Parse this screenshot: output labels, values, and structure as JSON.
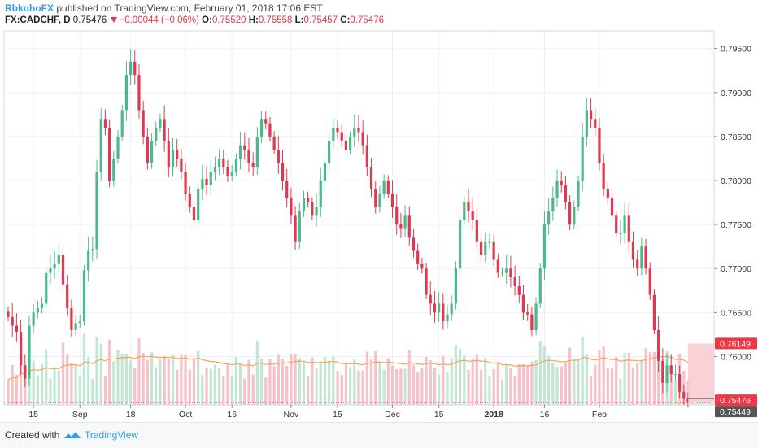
{
  "header": {
    "author": "RbkohoFX",
    "published_text": "published on TradingView.com, February 01, 2018 17:06 EST",
    "symbol": "FX:CADCHF, D",
    "last": "0.75476",
    "change": "−0.00044 (−0.06%)",
    "o_label": "O:",
    "o_value": "0.75520",
    "h_label": "H:",
    "h_value": "0.75558",
    "l_label": "L:",
    "l_value": "0.75457",
    "c_label": "C:",
    "c_value": "0.75476"
  },
  "footer": {
    "created_with": "Created with",
    "brand": "TradingView"
  },
  "colors": {
    "up": "#4cb98b",
    "down": "#e0384f",
    "vol_up": "#c3e6d4",
    "vol_down": "#f6c1c7",
    "ma": "#f4a460",
    "grid": "#eef0f3"
  },
  "chart_data": {
    "type": "candlestick",
    "ylim": [
      0.7545,
      0.797
    ],
    "y_ticks": [
      "0.79500",
      "0.79000",
      "0.78500",
      "0.78000",
      "0.77500",
      "0.77000",
      "0.76500",
      "0.76000"
    ],
    "x_ticks": [
      "15",
      "Sep",
      "18",
      "Oct",
      "16",
      "Nov",
      "15",
      "Dec",
      "15",
      "2018",
      "16",
      "Feb"
    ],
    "price_labels": [
      {
        "value": 0.76149,
        "text": "0.76149",
        "color": "#f23645"
      },
      {
        "value": 0.75476,
        "text": "0.75476",
        "color": "#f23645"
      },
      {
        "value": 0.75449,
        "text": "0.75449",
        "color": "#555555"
      }
    ],
    "closes": [
      0.7645,
      0.7635,
      0.7628,
      0.759,
      0.7575,
      0.7635,
      0.765,
      0.7655,
      0.766,
      0.7695,
      0.77,
      0.7705,
      0.7715,
      0.7682,
      0.7655,
      0.763,
      0.7638,
      0.764,
      0.7698,
      0.772,
      0.7722,
      0.781,
      0.787,
      0.786,
      0.78,
      0.7825,
      0.785,
      0.788,
      0.792,
      0.7935,
      0.792,
      0.788,
      0.785,
      0.782,
      0.7845,
      0.786,
      0.787,
      0.7845,
      0.7815,
      0.7835,
      0.7825,
      0.781,
      0.7785,
      0.777,
      0.7755,
      0.779,
      0.7802,
      0.7795,
      0.781,
      0.7815,
      0.7825,
      0.7815,
      0.7805,
      0.781,
      0.7825,
      0.784,
      0.7835,
      0.782,
      0.7815,
      0.785,
      0.787,
      0.7865,
      0.785,
      0.7835,
      0.782,
      0.78,
      0.778,
      0.776,
      0.773,
      0.7765,
      0.778,
      0.7775,
      0.776,
      0.777,
      0.78,
      0.782,
      0.7845,
      0.786,
      0.7855,
      0.7845,
      0.7835,
      0.785,
      0.786,
      0.7855,
      0.784,
      0.7815,
      0.779,
      0.777,
      0.7785,
      0.78,
      0.7785,
      0.777,
      0.775,
      0.7745,
      0.776,
      0.7735,
      0.772,
      0.7705,
      0.77,
      0.767,
      0.766,
      0.765,
      0.766,
      0.764,
      0.7648,
      0.766,
      0.77,
      0.7755,
      0.7775,
      0.7765,
      0.7755,
      0.773,
      0.7715,
      0.773,
      0.773,
      0.771,
      0.7695,
      0.7695,
      0.77,
      0.769,
      0.768,
      0.767,
      0.765,
      0.7648,
      0.763,
      0.766,
      0.77,
      0.775,
      0.7765,
      0.778,
      0.78,
      0.7795,
      0.7775,
      0.775,
      0.777,
      0.78,
      0.785,
      0.788,
      0.787,
      0.786,
      0.782,
      0.779,
      0.778,
      0.776,
      0.774,
      0.774,
      0.776,
      0.773,
      0.771,
      0.77,
      0.7725,
      0.77,
      0.767,
      0.763,
      0.7595,
      0.757,
      0.759,
      0.758,
      0.758,
      0.756,
      0.7552,
      0.75476
    ]
  }
}
